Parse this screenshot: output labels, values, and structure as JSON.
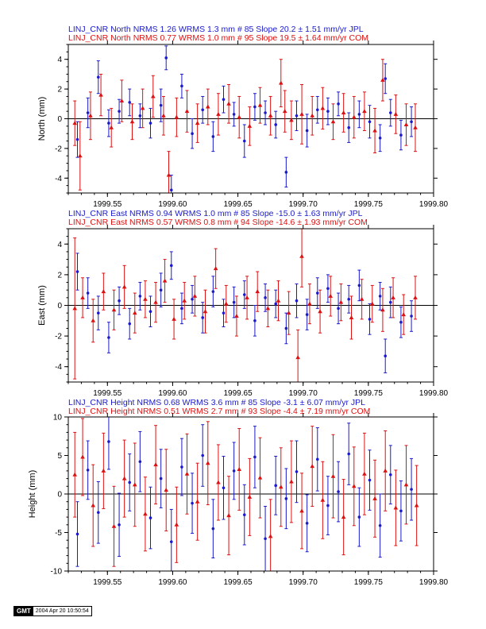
{
  "colors": {
    "jpl": "#1a1acc",
    "com": "#dd1111",
    "axis": "#000000"
  },
  "stamp": {
    "logo": "GMT",
    "date": "2004 Apr 20 10:50:54"
  },
  "chart_data": [
    {
      "type": "scatter",
      "component": "north",
      "title_lines": [
        "LINJ_CNR North NRMS 1.26 WRMS  1.3 mm # 85 Slope   20.2 ±  1.51 mm/yr JPL",
        "LINJ_CNR North NRMS 0.77 WRMS  1.0 mm # 95 Slope   19.5 ±  1.64 mm/yr COM"
      ],
      "xlabel": "",
      "ylabel": "North (mm)",
      "xlim": [
        1999.52,
        1999.8
      ],
      "ylim": [
        -5,
        5
      ],
      "xticks": [
        "1999.55",
        "1999.60",
        "1999.65",
        "1999.70",
        "1999.75",
        "1999.80"
      ],
      "yticks": [
        "-4",
        "-2",
        "0",
        "2",
        "4"
      ],
      "series": [
        {
          "name": "JPL",
          "marker": "circle",
          "x": [
            1999.527,
            1999.535,
            1999.543,
            1999.551,
            1999.559,
            1999.567,
            1999.575,
            1999.583,
            1999.591,
            1999.595,
            1999.599,
            1999.607,
            1999.615,
            1999.623,
            1999.631,
            1999.639,
            1999.647,
            1999.655,
            1999.663,
            1999.671,
            1999.679,
            1999.687,
            1999.695,
            1999.703,
            1999.711,
            1999.719,
            1999.727,
            1999.735,
            1999.743,
            1999.751,
            1999.759,
            1999.763,
            1999.767,
            1999.775,
            1999.783
          ],
          "y": [
            -1.4,
            0.4,
            2.8,
            -0.3,
            0.5,
            1.1,
            0.2,
            -0.3,
            0.9,
            4.1,
            -4.8,
            2.2,
            -1.0,
            0.6,
            -1.2,
            1.3,
            0.3,
            -1.5,
            0.8,
            0.4,
            -0.4,
            -3.6,
            0.2,
            -0.8,
            0.6,
            0.5,
            1.0,
            -0.6,
            0.3,
            -0.2,
            -1.3,
            2.7,
            0.4,
            -1.1,
            -0.2
          ],
          "err": [
            1.2,
            1.0,
            1.1,
            0.9,
            0.8,
            0.9,
            0.8,
            1.0,
            1.1,
            0.8,
            1.0,
            0.8,
            1.0,
            0.9,
            1.0,
            0.9,
            0.8,
            1.1,
            0.9,
            0.8,
            0.9,
            1.0,
            1.0,
            1.1,
            0.9,
            0.9,
            0.8,
            1.0,
            0.9,
            1.1,
            0.9,
            1.0,
            0.9,
            1.0,
            1.0
          ]
        },
        {
          "name": "COM",
          "marker": "triangle",
          "x": [
            1999.525,
            1999.529,
            1999.537,
            1999.545,
            1999.553,
            1999.561,
            1999.569,
            1999.577,
            1999.585,
            1999.593,
            1999.597,
            1999.603,
            1999.611,
            1999.619,
            1999.627,
            1999.635,
            1999.643,
            1999.651,
            1999.659,
            1999.667,
            1999.675,
            1999.683,
            1999.686,
            1999.691,
            1999.699,
            1999.707,
            1999.715,
            1999.723,
            1999.731,
            1999.739,
            1999.747,
            1999.755,
            1999.761,
            1999.771,
            1999.779,
            1999.786
          ],
          "y": [
            -0.3,
            -2.5,
            0.2,
            1.6,
            -0.6,
            1.2,
            -0.2,
            0.7,
            1.5,
            0.2,
            -3.8,
            0.1,
            0.5,
            -0.3,
            0.8,
            0.3,
            1.0,
            0.1,
            -0.5,
            0.9,
            0.2,
            2.4,
            0.5,
            -0.1,
            0.3,
            0.2,
            0.7,
            -0.2,
            0.4,
            0.1,
            0.5,
            -0.8,
            2.6,
            0.3,
            -0.4,
            -0.6
          ],
          "err": [
            1.5,
            2.3,
            1.6,
            1.4,
            1.3,
            1.4,
            1.2,
            1.3,
            1.4,
            1.3,
            1.6,
            1.3,
            1.4,
            1.3,
            1.2,
            1.4,
            1.3,
            1.4,
            1.3,
            1.2,
            1.3,
            1.6,
            1.4,
            1.3,
            2.0,
            1.3,
            1.4,
            1.2,
            1.3,
            1.4,
            1.3,
            1.5,
            1.4,
            1.3,
            1.4,
            1.6
          ]
        }
      ]
    },
    {
      "type": "scatter",
      "component": "east",
      "title_lines": [
        "LINJ_CNR East NRMS 0.94 WRMS  1.0 mm # 85 Slope  -15.0 ±  1.63 mm/yr JPL",
        "LINJ_CNR East NRMS 0.57 WRMS  0.8 mm # 94 Slope  -14.6 ±  1.93 mm/yr COM"
      ],
      "xlabel": "",
      "ylabel": "East (mm)",
      "xlim": [
        1999.52,
        1999.8
      ],
      "ylim": [
        -5,
        5
      ],
      "xticks": [
        "1999.55",
        "1999.60",
        "1999.65",
        "1999.70",
        "1999.75",
        "1999.80"
      ],
      "yticks": [
        "-4",
        "-2",
        "0",
        "2",
        "4"
      ],
      "series": [
        {
          "name": "JPL",
          "marker": "circle",
          "x": [
            1999.527,
            1999.535,
            1999.543,
            1999.551,
            1999.559,
            1999.567,
            1999.575,
            1999.583,
            1999.591,
            1999.599,
            1999.607,
            1999.615,
            1999.623,
            1999.631,
            1999.639,
            1999.647,
            1999.655,
            1999.663,
            1999.671,
            1999.679,
            1999.687,
            1999.695,
            1999.703,
            1999.711,
            1999.719,
            1999.727,
            1999.735,
            1999.743,
            1999.751,
            1999.759,
            1999.763,
            1999.767,
            1999.775,
            1999.783
          ],
          "y": [
            2.2,
            0.8,
            -0.5,
            -2.1,
            0.3,
            -1.2,
            0.6,
            -0.4,
            1.0,
            2.6,
            -0.2,
            0.4,
            -0.8,
            0.9,
            -0.5,
            0.2,
            0.7,
            -1.0,
            0.5,
            0.1,
            -1.5,
            0.3,
            -0.6,
            0.8,
            1.1,
            -0.2,
            0.4,
            1.3,
            -0.9,
            0.6,
            -3.3,
            0.2,
            -1.1,
            -0.7
          ],
          "err": [
            1.2,
            1.0,
            1.1,
            1.0,
            0.9,
            1.0,
            0.9,
            1.0,
            1.1,
            0.9,
            1.0,
            0.9,
            1.0,
            1.0,
            0.9,
            1.0,
            0.9,
            1.0,
            0.9,
            0.9,
            1.0,
            1.1,
            1.0,
            1.0,
            0.9,
            1.0,
            0.9,
            1.0,
            1.0,
            0.9,
            1.1,
            1.0,
            1.0,
            1.0
          ]
        },
        {
          "name": "COM",
          "marker": "triangle",
          "x": [
            1999.525,
            1999.531,
            1999.539,
            1999.547,
            1999.555,
            1999.563,
            1999.571,
            1999.579,
            1999.587,
            1999.594,
            1999.601,
            1999.609,
            1999.617,
            1999.625,
            1999.633,
            1999.641,
            1999.649,
            1999.657,
            1999.665,
            1999.673,
            1999.681,
            1999.689,
            1999.696,
            1999.699,
            1999.705,
            1999.713,
            1999.721,
            1999.729,
            1999.737,
            1999.745,
            1999.753,
            1999.761,
            1999.769,
            1999.777,
            1999.786
          ],
          "y": [
            -0.2,
            0.5,
            -1.0,
            0.9,
            -0.3,
            1.2,
            -0.5,
            0.4,
            0.2,
            1.6,
            -0.9,
            0.3,
            0.6,
            -0.4,
            2.4,
            0.1,
            -0.7,
            0.5,
            0.9,
            -0.2,
            0.3,
            -0.5,
            -3.4,
            3.2,
            0.1,
            -0.4,
            0.6,
            0.2,
            -0.8,
            0.4,
            0.1,
            -0.3,
            0.5,
            -0.6,
            0.5
          ],
          "err": [
            4.6,
            1.3,
            1.4,
            1.2,
            1.3,
            1.4,
            1.3,
            1.2,
            1.3,
            1.4,
            1.3,
            1.2,
            1.3,
            1.4,
            1.3,
            1.2,
            1.3,
            1.4,
            1.3,
            1.2,
            1.3,
            1.4,
            1.8,
            2.0,
            1.3,
            1.4,
            1.3,
            1.2,
            1.4,
            1.3,
            1.2,
            1.4,
            1.3,
            1.3,
            1.4
          ]
        }
      ]
    },
    {
      "type": "scatter",
      "component": "height",
      "title_lines": [
        "LINJ_CNR Height NRMS 0.68 WRMS  3.6 mm # 85 Slope   -3.1 ±  6.07 mm/yr JPL",
        "LINJ_CNR Height NRMS 0.51 WRMS  2.7 mm # 93 Slope   -4.4 ±  7.19 mm/yr COM"
      ],
      "xlabel": "",
      "ylabel": "Height (mm)",
      "xlim": [
        1999.52,
        1999.8
      ],
      "ylim": [
        -10,
        10
      ],
      "xticks": [
        "1999.55",
        "1999.60",
        "1999.65",
        "1999.70",
        "1999.75",
        "1999.80"
      ],
      "yticks": [
        "-10",
        "-5",
        "0",
        "5",
        "10"
      ],
      "series": [
        {
          "name": "JPL",
          "marker": "circle",
          "x": [
            1999.527,
            1999.535,
            1999.543,
            1999.551,
            1999.559,
            1999.567,
            1999.575,
            1999.583,
            1999.591,
            1999.599,
            1999.607,
            1999.615,
            1999.623,
            1999.631,
            1999.639,
            1999.647,
            1999.655,
            1999.663,
            1999.671,
            1999.679,
            1999.687,
            1999.695,
            1999.703,
            1999.711,
            1999.719,
            1999.727,
            1999.735,
            1999.743,
            1999.751,
            1999.759,
            1999.767,
            1999.775,
            1999.783
          ],
          "y": [
            -5.2,
            3.1,
            -2.4,
            6.8,
            -4.0,
            1.5,
            4.2,
            -3.1,
            2.0,
            -6.2,
            3.5,
            -1.2,
            5.0,
            -4.5,
            0.8,
            3.0,
            -2.7,
            4.8,
            -5.8,
            1.1,
            -0.6,
            2.9,
            -3.8,
            4.5,
            -1.5,
            0.3,
            5.2,
            -3.0,
            1.8,
            -4.1,
            2.5,
            -2.2,
            0.6
          ],
          "err": [
            4.2,
            3.8,
            4.0,
            3.6,
            4.1,
            3.7,
            3.9,
            4.0,
            3.8,
            4.2,
            3.7,
            3.9,
            4.0,
            3.8,
            4.1,
            3.7,
            3.9,
            4.0,
            4.2,
            3.8,
            3.9,
            4.0,
            3.7,
            4.1,
            3.8,
            3.9,
            4.0,
            3.8,
            3.9,
            4.1,
            3.8,
            3.9,
            4.0
          ]
        },
        {
          "name": "COM",
          "marker": "triangle",
          "x": [
            1999.525,
            1999.531,
            1999.539,
            1999.547,
            1999.555,
            1999.563,
            1999.571,
            1999.579,
            1999.587,
            1999.595,
            1999.603,
            1999.611,
            1999.619,
            1999.627,
            1999.635,
            1999.643,
            1999.651,
            1999.659,
            1999.667,
            1999.675,
            1999.683,
            1999.691,
            1999.699,
            1999.707,
            1999.715,
            1999.723,
            1999.731,
            1999.739,
            1999.747,
            1999.755,
            1999.763,
            1999.771,
            1999.779,
            1999.787
          ],
          "y": [
            2.5,
            4.8,
            -1.5,
            3.0,
            -4.2,
            2.0,
            1.2,
            -2.6,
            3.8,
            0.5,
            -4.0,
            2.6,
            -1.0,
            4.0,
            1.5,
            -2.8,
            3.2,
            -0.4,
            2.1,
            -5.5,
            0.9,
            1.6,
            -2.2,
            3.6,
            -0.8,
            2.3,
            -3.0,
            1.0,
            2.6,
            -0.6,
            3.0,
            -1.8,
            1.2,
            -1.5
          ],
          "err": [
            5.5,
            5.0,
            5.3,
            4.9,
            5.2,
            5.0,
            5.4,
            4.8,
            5.1,
            5.3,
            4.9,
            5.2,
            5.0,
            5.4,
            4.9,
            5.1,
            5.3,
            5.0,
            5.2,
            4.8,
            5.1,
            5.3,
            4.9,
            5.2,
            5.0,
            5.4,
            4.9,
            5.1,
            5.3,
            5.0,
            5.2,
            4.9,
            5.1,
            5.2
          ]
        }
      ]
    }
  ]
}
